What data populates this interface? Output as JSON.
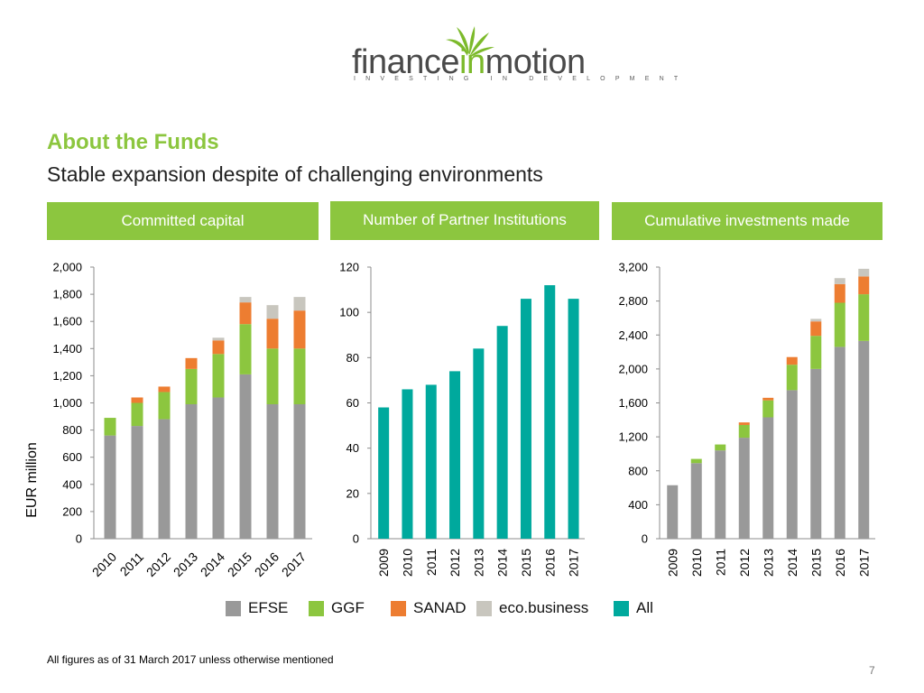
{
  "logo": {
    "word_part1": "finance",
    "word_part2": "in",
    "word_part3": "motion",
    "tagline": "INVESTING IN DEVELOPMENT"
  },
  "section_title": "About the Funds",
  "subtitle": "Stable expansion despite of challenging environments",
  "headers": [
    "Committed capital",
    "Number of Partner Institutions",
    "Cumulative investments made"
  ],
  "legend": [
    {
      "label": "EFSE",
      "color": "#999999"
    },
    {
      "label": "GGF",
      "color": "#8cc63f"
    },
    {
      "label": "SANAD",
      "color": "#ed7d31"
    },
    {
      "label": "eco.business",
      "color": "#c8c6be"
    },
    {
      "label": "All",
      "color": "#00a99d"
    }
  ],
  "footnote": "All figures  as of 31 March 2017 unless otherwise mentioned",
  "page_number": "7",
  "chart_data": [
    {
      "type": "bar",
      "stacked": true,
      "title": "Committed capital",
      "ylabel": "EUR million",
      "ylim": [
        0,
        2000
      ],
      "yticks": [
        "0",
        "200",
        "400",
        "600",
        "800",
        "1,000",
        "1,200",
        "1,400",
        "1,600",
        "1,800",
        "2,000"
      ],
      "tick_values": [
        0,
        200,
        400,
        600,
        800,
        1000,
        1200,
        1400,
        1600,
        1800,
        2000
      ],
      "categories": [
        "2010",
        "2011",
        "2012",
        "2013",
        "2014",
        "2015",
        "2016",
        "2017"
      ],
      "series": [
        {
          "name": "EFSE",
          "color": "#999999",
          "values": [
            760,
            830,
            880,
            990,
            1040,
            1210,
            990,
            990
          ]
        },
        {
          "name": "GGF",
          "color": "#8cc63f",
          "values": [
            130,
            170,
            200,
            260,
            320,
            370,
            410,
            410
          ]
        },
        {
          "name": "SANAD",
          "color": "#ed7d31",
          "values": [
            0,
            40,
            40,
            80,
            100,
            160,
            220,
            280
          ]
        },
        {
          "name": "eco.business",
          "color": "#c8c6be",
          "values": [
            0,
            0,
            0,
            0,
            20,
            40,
            100,
            100
          ]
        }
      ],
      "grid": false
    },
    {
      "type": "bar",
      "title": "Number of Partner Institutions",
      "ylim": [
        0,
        120
      ],
      "yticks": [
        "0",
        "20",
        "40",
        "60",
        "80",
        "100",
        "120"
      ],
      "tick_values": [
        0,
        20,
        40,
        60,
        80,
        100,
        120
      ],
      "categories": [
        "2009",
        "2010",
        "2011",
        "2012",
        "2013",
        "2014",
        "2015",
        "2016",
        "2017"
      ],
      "series": [
        {
          "name": "All",
          "color": "#00a99d",
          "values": [
            58,
            66,
            68,
            74,
            84,
            94,
            106,
            112,
            106
          ]
        }
      ],
      "grid": false
    },
    {
      "type": "bar",
      "stacked": true,
      "title": "Cumulative investments made",
      "ylim": [
        0,
        3200
      ],
      "yticks": [
        "0",
        "400",
        "800",
        "1,200",
        "1,600",
        "2,000",
        "2,400",
        "2,800",
        "3,200"
      ],
      "tick_values": [
        0,
        400,
        800,
        1200,
        1600,
        2000,
        2400,
        2800,
        3200
      ],
      "categories": [
        "2009",
        "2010",
        "2011",
        "2012",
        "2013",
        "2014",
        "2015",
        "2016",
        "2017"
      ],
      "series": [
        {
          "name": "EFSE",
          "color": "#999999",
          "values": [
            630,
            890,
            1040,
            1190,
            1430,
            1750,
            2000,
            2260,
            2330
          ]
        },
        {
          "name": "GGF",
          "color": "#8cc63f",
          "values": [
            0,
            50,
            70,
            150,
            200,
            300,
            390,
            520,
            550
          ]
        },
        {
          "name": "SANAD",
          "color": "#ed7d31",
          "values": [
            0,
            0,
            0,
            30,
            30,
            90,
            170,
            220,
            210
          ]
        },
        {
          "name": "eco.business",
          "color": "#c8c6be",
          "values": [
            0,
            0,
            0,
            0,
            0,
            0,
            30,
            70,
            90
          ]
        }
      ],
      "grid": false
    }
  ]
}
